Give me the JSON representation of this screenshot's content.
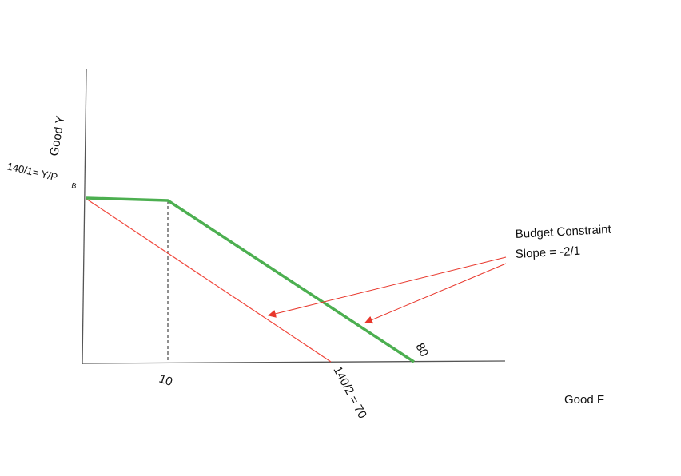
{
  "axes": {
    "y_label": "Good Y",
    "x_label": "Good F"
  },
  "labels": {
    "y_intercept_prefix": "140/1= Y/P",
    "y_intercept_subscript": "B",
    "kink_x": "10",
    "red_x_intercept": "140/2 = 70",
    "green_x_intercept": "80"
  },
  "annotation": {
    "line1": "Budget Constraint",
    "line2": "Slope = -2/1"
  },
  "colors": {
    "axis": "#555555",
    "original_budget_line": "#f0473c",
    "new_budget_line": "#4caf50",
    "arrow": "#e8372c",
    "dashed_guide": "#222222"
  }
}
